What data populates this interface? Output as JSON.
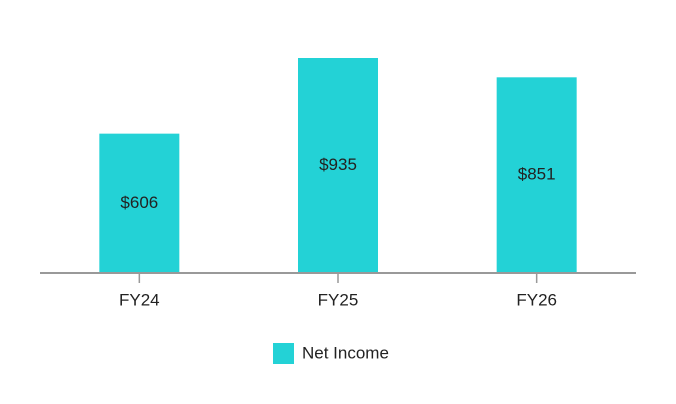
{
  "chart_data": {
    "type": "bar",
    "categories": [
      "FY24",
      "FY25",
      "FY26"
    ],
    "series": [
      {
        "name": "Net Income",
        "color": "#23d2d6",
        "values": [
          606,
          935,
          851
        ],
        "value_labels": [
          "$606",
          "$935",
          "$851"
        ]
      }
    ]
  }
}
